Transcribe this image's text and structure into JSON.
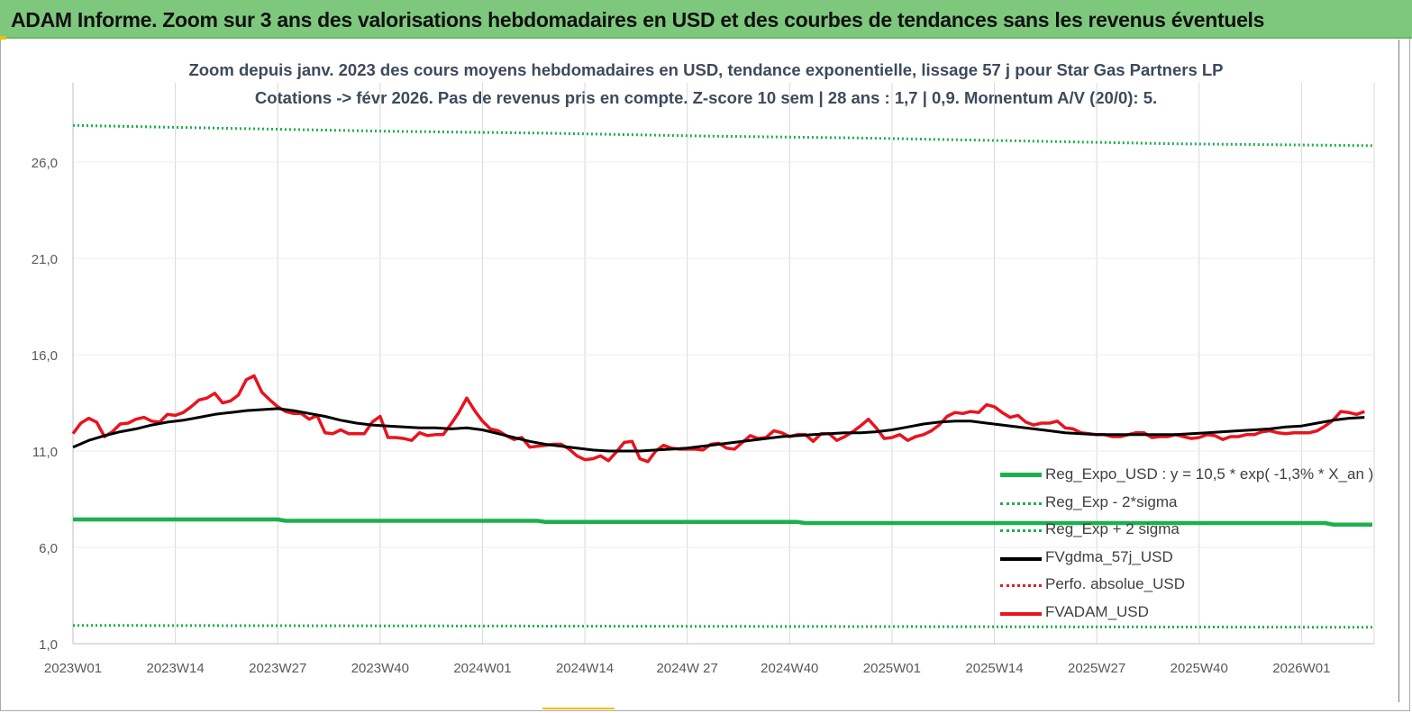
{
  "banner": {
    "title": "ADAM Informe. Zoom sur 3 ans des valorisations hebdomadaires en USD et des courbes de tendances sans les revenus éventuels"
  },
  "chart_data": {
    "type": "line",
    "title_line1": "Zoom depuis janv. 2023 des cours moyens hebdomadaires en USD, tendance exponentielle, lissage 57 j pour Star Gas Partners LP",
    "title_line2": "Cotations -> févr 2026. Pas de revenus pris en compte. Z-score 10 sem | 28 ans : 1,7 | 0,9. Momentum A/V (20/0): 5.",
    "ylim": [
      1.0,
      28.0
    ],
    "yticks": [
      1.0,
      6.0,
      11.0,
      16.0,
      21.0,
      26.0
    ],
    "ytick_labels": [
      "1,0",
      "6,0",
      "11,0",
      "16,0",
      "21,0",
      "26,0"
    ],
    "x_range": [
      0,
      165
    ],
    "xticks": [
      0,
      13,
      26,
      39,
      52,
      65,
      78,
      91,
      104,
      117,
      130,
      143,
      156
    ],
    "xtick_labels": [
      "2023W01",
      "2023W14",
      "2023W27",
      "2023W40",
      "2024W01",
      "2024W14",
      "2024W 27",
      "2024W40",
      "2025W01",
      "2025W14",
      "2025W27",
      "2025W40",
      "2026W01"
    ],
    "grid": "vertical",
    "legend_position": "bottom-right",
    "colors": {
      "reg_expo": "#1daf4e",
      "band": "#1daf4e",
      "fvgdma": "#000000",
      "perfo": "#e02020",
      "fvadam": "#e8141e",
      "grid": "#d9d9d9",
      "axis_text": "#595959"
    },
    "series": [
      {
        "name": "Reg_Expo_USD : y = 10,5 * exp( -1,3% *  X_an )",
        "key": "reg_expo",
        "style": "solid-thick",
        "x": [
          0,
          26,
          27,
          59,
          60,
          92,
          93,
          159,
          160,
          165
        ],
        "values": [
          7.45,
          7.45,
          7.38,
          7.38,
          7.32,
          7.32,
          7.26,
          7.26,
          7.18,
          7.18
        ]
      },
      {
        "name": "Reg_Exp - 2*sigma",
        "key": "band_low",
        "style": "dotted",
        "x": [
          0,
          165
        ],
        "values": [
          1.95,
          1.85
        ]
      },
      {
        "name": "Reg_Exp + 2 sigma",
        "key": "band_high",
        "style": "dotted",
        "x": [
          0,
          20,
          40,
          60,
          80,
          100,
          120,
          140,
          165
        ],
        "values": [
          27.9,
          27.75,
          27.6,
          27.5,
          27.35,
          27.25,
          27.1,
          26.95,
          26.85
        ]
      },
      {
        "name": "FVgdma_57j_USD",
        "key": "fvgdma",
        "style": "solid",
        "x": [
          0,
          2,
          4,
          6,
          8,
          10,
          12,
          14,
          16,
          18,
          20,
          22,
          24,
          26,
          28,
          30,
          32,
          34,
          36,
          38,
          40,
          42,
          44,
          46,
          48,
          50,
          52,
          54,
          56,
          58,
          60,
          62,
          64,
          66,
          68,
          70,
          72,
          74,
          76,
          78,
          80,
          82,
          84,
          86,
          88,
          90,
          92,
          94,
          96,
          98,
          100,
          102,
          104,
          106,
          108,
          110,
          112,
          114,
          116,
          118,
          120,
          122,
          124,
          126,
          128,
          130,
          132,
          134,
          136,
          138,
          140,
          142,
          144,
          146,
          148,
          150,
          152,
          154,
          156,
          158,
          160,
          162,
          164
        ],
        "values": [
          11.2,
          11.55,
          11.8,
          12.0,
          12.15,
          12.35,
          12.5,
          12.6,
          12.75,
          12.9,
          13.0,
          13.1,
          13.15,
          13.2,
          13.1,
          12.95,
          12.8,
          12.6,
          12.45,
          12.35,
          12.3,
          12.25,
          12.2,
          12.2,
          12.15,
          12.2,
          12.1,
          11.9,
          11.7,
          11.5,
          11.35,
          11.25,
          11.15,
          11.05,
          11.0,
          11.0,
          11.0,
          11.05,
          11.1,
          11.15,
          11.25,
          11.35,
          11.45,
          11.55,
          11.65,
          11.75,
          11.8,
          11.85,
          11.9,
          11.95,
          11.95,
          12.0,
          12.1,
          12.25,
          12.4,
          12.5,
          12.55,
          12.55,
          12.45,
          12.35,
          12.25,
          12.15,
          12.05,
          11.95,
          11.9,
          11.85,
          11.85,
          11.85,
          11.85,
          11.85,
          11.85,
          11.9,
          11.95,
          12.0,
          12.05,
          12.1,
          12.15,
          12.25,
          12.3,
          12.45,
          12.6,
          12.7,
          12.75
        ]
      },
      {
        "name": "Perfo. absolue_USD",
        "key": "perfo",
        "style": "dotted",
        "x": [],
        "values": []
      },
      {
        "name": "FVADAM_USD",
        "key": "fvadam",
        "style": "solid-thick",
        "x": [
          0,
          1,
          2,
          3,
          4,
          5,
          6,
          7,
          8,
          9,
          10,
          11,
          12,
          13,
          14,
          15,
          16,
          17,
          18,
          19,
          20,
          21,
          22,
          23,
          24,
          25,
          26,
          27,
          28,
          29,
          30,
          31,
          32,
          33,
          34,
          35,
          36,
          37,
          38,
          39,
          40,
          41,
          42,
          43,
          44,
          45,
          46,
          47,
          48,
          49,
          50,
          51,
          52,
          53,
          54,
          55,
          56,
          57,
          58,
          59,
          60,
          61,
          62,
          63,
          64,
          65,
          66,
          67,
          68,
          69,
          70,
          71,
          72,
          73,
          74,
          75,
          76,
          77,
          78,
          79,
          80,
          81,
          82,
          83,
          84,
          85,
          86,
          87,
          88,
          89,
          90,
          91,
          92,
          93,
          94,
          95,
          96,
          97,
          98,
          99,
          100,
          101,
          102,
          103,
          104,
          105,
          106,
          107,
          108,
          109,
          110,
          111,
          112,
          113,
          114,
          115,
          116,
          117,
          118,
          119,
          120,
          121,
          122,
          123,
          124,
          125,
          126,
          127,
          128,
          129,
          130,
          131,
          132,
          133,
          134,
          135,
          136,
          137,
          138,
          139,
          140,
          141,
          142,
          143,
          144,
          145,
          146,
          147,
          148,
          149,
          150,
          151,
          152,
          153,
          154,
          155,
          156,
          157,
          158,
          159,
          160,
          161,
          162,
          163,
          164
        ],
        "values": [
          11.9,
          12.45,
          12.7,
          12.5,
          11.75,
          12.0,
          12.4,
          12.45,
          12.65,
          12.75,
          12.55,
          12.5,
          12.9,
          12.85,
          13.0,
          13.3,
          13.65,
          13.75,
          14.0,
          13.5,
          13.6,
          13.9,
          14.7,
          14.9,
          14.05,
          13.65,
          13.3,
          13.05,
          12.95,
          12.95,
          12.65,
          12.85,
          11.95,
          11.9,
          12.1,
          11.9,
          11.9,
          11.9,
          12.5,
          12.8,
          11.7,
          11.7,
          11.65,
          11.55,
          11.95,
          11.8,
          11.85,
          11.85,
          12.4,
          13.0,
          13.75,
          13.1,
          12.55,
          12.15,
          12.05,
          11.8,
          11.6,
          11.7,
          11.2,
          11.25,
          11.3,
          11.35,
          11.35,
          11.1,
          10.75,
          10.55,
          10.6,
          10.75,
          10.5,
          10.95,
          11.45,
          11.5,
          10.6,
          10.45,
          11.0,
          11.3,
          11.15,
          11.1,
          11.1,
          11.1,
          11.05,
          11.35,
          11.4,
          11.15,
          11.1,
          11.45,
          11.8,
          11.65,
          11.7,
          12.05,
          11.95,
          11.75,
          11.85,
          11.85,
          11.5,
          11.9,
          11.9,
          11.55,
          11.75,
          12.0,
          12.3,
          12.65,
          12.2,
          11.65,
          11.7,
          11.85,
          11.55,
          11.75,
          11.85,
          12.05,
          12.35,
          12.8,
          13.0,
          12.95,
          13.05,
          13.0,
          13.4,
          13.3,
          13.0,
          12.75,
          12.85,
          12.5,
          12.35,
          12.45,
          12.45,
          12.55,
          12.2,
          12.15,
          11.95,
          11.9,
          11.85,
          11.85,
          11.75,
          11.75,
          11.85,
          11.95,
          11.95,
          11.7,
          11.75,
          11.75,
          11.85,
          11.75,
          11.65,
          11.7,
          11.85,
          11.8,
          11.6,
          11.75,
          11.75,
          11.85,
          11.85,
          12.0,
          12.05,
          11.95,
          11.9,
          11.95,
          11.95,
          11.95,
          12.05,
          12.3,
          12.6,
          13.05,
          13.0,
          12.9,
          13.05
        ]
      }
    ]
  }
}
